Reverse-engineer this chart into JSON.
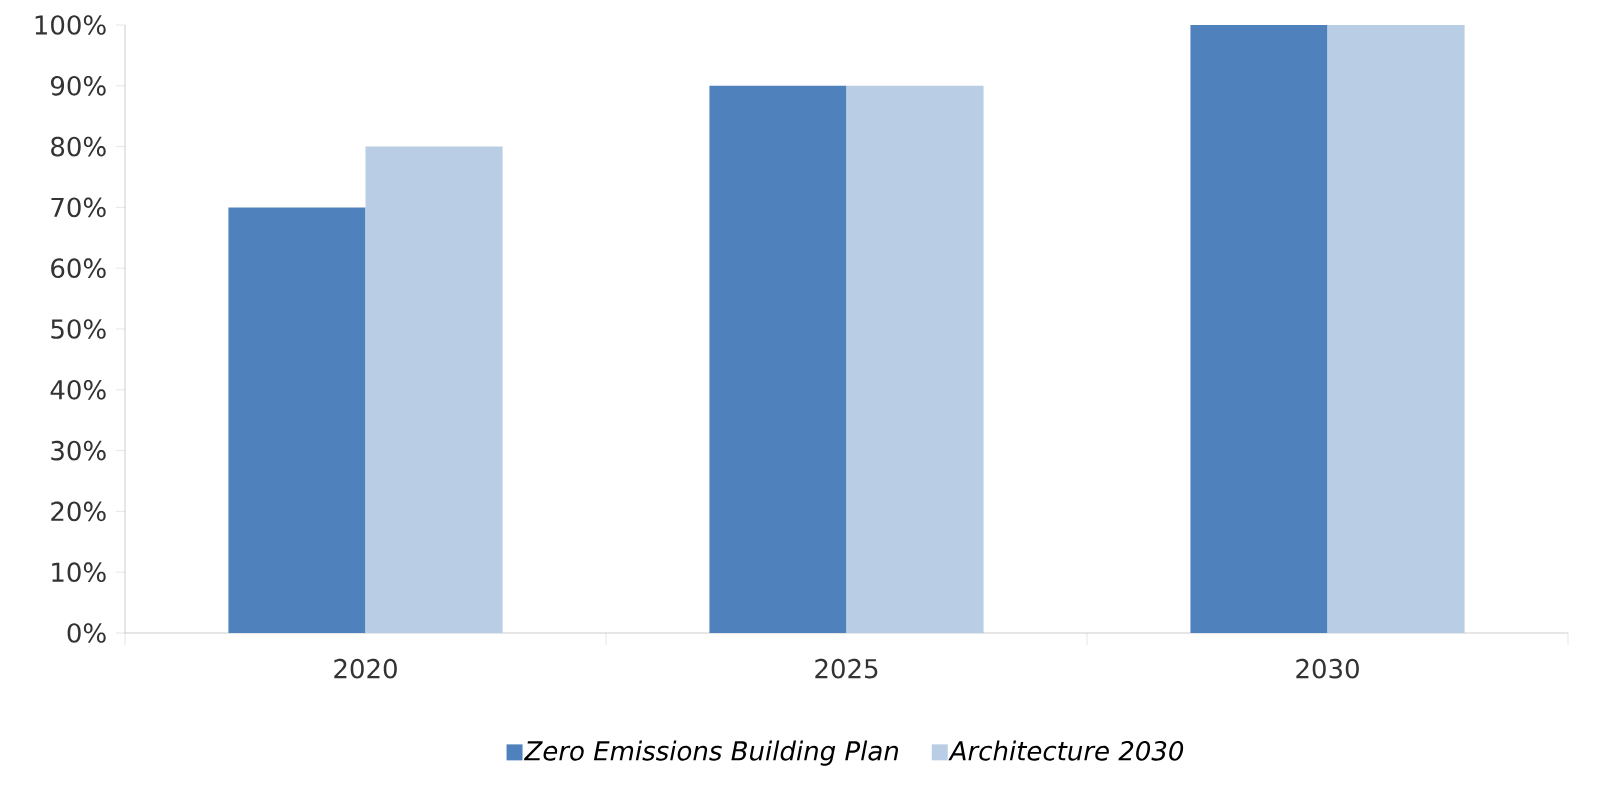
{
  "chart_data": {
    "type": "bar",
    "categories": [
      "2020",
      "2025",
      "2030"
    ],
    "series": [
      {
        "name": "*Zero Emissions Building Plan*",
        "color": "#4f81bd",
        "values": [
          70,
          90,
          100
        ]
      },
      {
        "name": "*Architecture 2030*",
        "color": "#b9cde5",
        "values": [
          80,
          90,
          100
        ]
      }
    ],
    "ylim": [
      0,
      100
    ],
    "yticks": [
      {
        "value": 0,
        "label": "0%"
      },
      {
        "value": 10,
        "label": "10%"
      },
      {
        "value": 20,
        "label": "20%"
      },
      {
        "value": 30,
        "label": "30%"
      },
      {
        "value": 40,
        "label": "40%"
      },
      {
        "value": 50,
        "label": "50%"
      },
      {
        "value": 60,
        "label": "60%"
      },
      {
        "value": 70,
        "label": "70%"
      },
      {
        "value": 80,
        "label": "80%"
      },
      {
        "value": 90,
        "label": "90%"
      },
      {
        "value": 100,
        "label": "100%"
      }
    ],
    "grid": false,
    "legend": "bottom"
  }
}
